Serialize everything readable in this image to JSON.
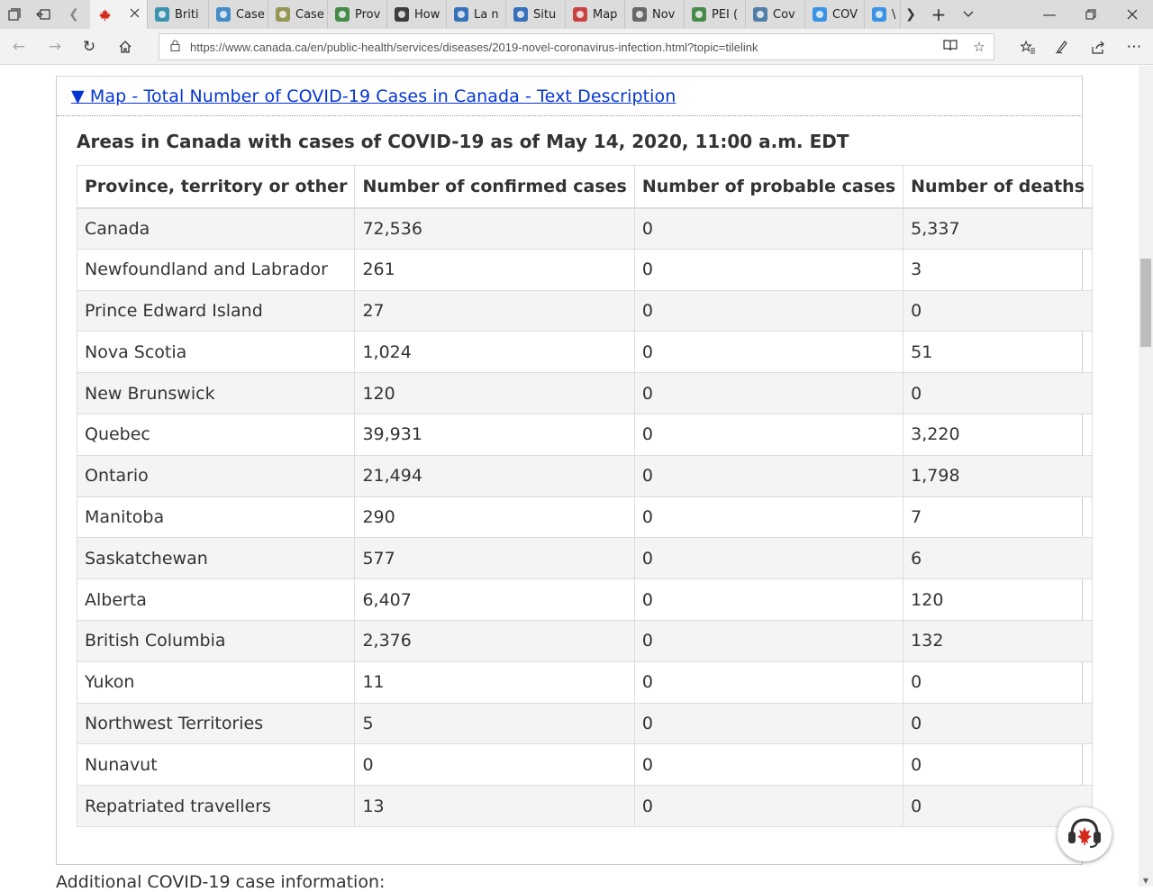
{
  "browser": {
    "tabs": [
      {
        "title": "",
        "favicon": "maple-leaf-icon",
        "fav_color": "#d52b1e",
        "active": true
      },
      {
        "title": "Briti",
        "favicon": "bc-icon",
        "fav_color": "#1e88a8"
      },
      {
        "title": "Case",
        "favicon": "chart-icon",
        "fav_color": "#2a7fc1"
      },
      {
        "title": "Case",
        "favicon": "doc-icon",
        "fav_color": "#8a8a40"
      },
      {
        "title": "Prov",
        "favicon": "grid-icon",
        "fav_color": "#2e7d32"
      },
      {
        "title": "How",
        "favicon": "hexagon-icon",
        "fav_color": "#222222"
      },
      {
        "title": "La n",
        "favicon": "fleur-de-lis-icon",
        "fav_color": "#1a5fb4"
      },
      {
        "title": "Situ",
        "favicon": "fleur-de-lis-icon",
        "fav_color": "#1a5fb4"
      },
      {
        "title": "Map",
        "favicon": "map-pin-icon",
        "fav_color": "#c62828"
      },
      {
        "title": "Nov",
        "favicon": "image-icon",
        "fav_color": "#555555"
      },
      {
        "title": "PEI (",
        "favicon": "pei-icon",
        "fav_color": "#2e7d32"
      },
      {
        "title": "Cov",
        "favicon": "globe-icon",
        "fav_color": "#3b6e9e"
      },
      {
        "title": "COV",
        "favicon": "swirl-icon",
        "fav_color": "#1e88e5"
      },
      {
        "title": "\\",
        "favicon": "wave-icon",
        "fav_color": "#1e88e5"
      }
    ],
    "address": {
      "url": "https://www.canada.ca/en/public-health/services/diseases/2019-novel-coronavirus-infection.html?topic=tilelink"
    }
  },
  "page": {
    "summary_link": "▼ Map - Total Number of COVID-19 Cases in Canada - Text Description",
    "caption": "Areas in Canada with cases of COVID-19 as of May 14, 2020, 11:00 a.m. EDT",
    "table": {
      "headers": [
        "Province, territory or other",
        "Number of confirmed cases",
        "Number of probable cases",
        "Number of deaths"
      ],
      "rows": [
        [
          "Canada",
          "72,536",
          "0",
          "5,337"
        ],
        [
          "Newfoundland and Labrador",
          "261",
          "0",
          "3"
        ],
        [
          "Prince Edward Island",
          "27",
          "0",
          "0"
        ],
        [
          "Nova Scotia",
          "1,024",
          "0",
          "51"
        ],
        [
          "New Brunswick",
          "120",
          "0",
          "0"
        ],
        [
          "Quebec",
          "39,931",
          "0",
          "3,220"
        ],
        [
          "Ontario",
          "21,494",
          "0",
          "1,798"
        ],
        [
          "Manitoba",
          "290",
          "0",
          "7"
        ],
        [
          "Saskatchewan",
          "577",
          "0",
          "6"
        ],
        [
          "Alberta",
          "6,407",
          "0",
          "120"
        ],
        [
          "British Columbia",
          "2,376",
          "0",
          "132"
        ],
        [
          "Yukon",
          "11",
          "0",
          "0"
        ],
        [
          "Northwest Territories",
          "5",
          "0",
          "0"
        ],
        [
          "Nunavut",
          "0",
          "0",
          "0"
        ],
        [
          "Repatriated travellers",
          "13",
          "0",
          "0"
        ]
      ]
    },
    "after_text": "Additional COVID-19 case information:"
  },
  "colors": {
    "link": "#0535d2",
    "stripe": "#f4f4f4",
    "canada_red": "#d52b1e"
  }
}
